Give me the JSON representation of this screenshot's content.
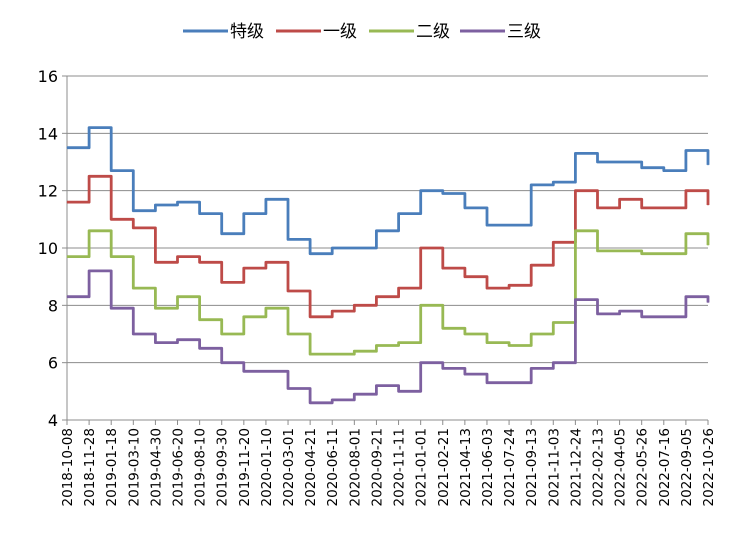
{
  "chart_data": {
    "type": "line",
    "title": "",
    "xlabel": "",
    "ylabel": "",
    "ylim": [
      4,
      16
    ],
    "yticks": [
      4,
      6,
      8,
      10,
      12,
      14,
      16
    ],
    "grid": "horizontal",
    "legend_position": "top",
    "x": [
      "2018-10-08",
      "2018-11-28",
      "2019-01-18",
      "2019-03-10",
      "2019-04-30",
      "2019-06-20",
      "2019-08-10",
      "2019-09-30",
      "2019-11-20",
      "2020-01-10",
      "2020-03-01",
      "2020-04-21",
      "2020-06-11",
      "2020-08-01",
      "2020-09-21",
      "2020-11-11",
      "2021-01-01",
      "2021-02-21",
      "2021-04-13",
      "2021-06-03",
      "2021-07-24",
      "2021-09-13",
      "2021-11-03",
      "2021-12-24",
      "2022-02-13",
      "2022-04-05",
      "2022-05-26",
      "2022-07-16",
      "2022-09-05",
      "2022-10-26"
    ],
    "series": [
      {
        "name": "特级",
        "color": "#4a7ebb",
        "values": [
          13.5,
          14.2,
          12.7,
          11.3,
          11.5,
          11.6,
          11.2,
          10.5,
          11.2,
          11.7,
          10.3,
          9.8,
          10.0,
          10.0,
          10.6,
          11.2,
          12.0,
          11.9,
          11.4,
          10.8,
          10.8,
          12.2,
          12.3,
          13.3,
          13.0,
          13.0,
          12.8,
          12.7,
          13.4,
          12.9
        ]
      },
      {
        "name": "一级",
        "color": "#be4b48",
        "values": [
          11.6,
          12.5,
          11.0,
          10.7,
          9.5,
          9.7,
          9.5,
          8.8,
          9.3,
          9.5,
          8.5,
          7.6,
          7.8,
          8.0,
          8.3,
          8.6,
          10.0,
          9.3,
          9.0,
          8.6,
          8.7,
          9.4,
          10.2,
          12.0,
          11.4,
          11.7,
          11.4,
          11.4,
          12.0,
          11.5
        ]
      },
      {
        "name": "二级",
        "color": "#98b954",
        "values": [
          9.7,
          10.6,
          9.7,
          8.6,
          7.9,
          8.3,
          7.5,
          7.0,
          7.6,
          7.9,
          7.0,
          6.3,
          6.3,
          6.4,
          6.6,
          6.7,
          8.0,
          7.2,
          7.0,
          6.7,
          6.6,
          7.0,
          7.4,
          10.6,
          9.9,
          9.9,
          9.8,
          9.8,
          10.5,
          10.1
        ]
      },
      {
        "name": "三级",
        "color": "#7d60a0",
        "values": [
          8.3,
          9.2,
          7.9,
          7.0,
          6.7,
          6.8,
          6.5,
          6.0,
          5.7,
          5.7,
          5.1,
          4.6,
          4.7,
          4.9,
          5.2,
          5.0,
          6.0,
          5.8,
          5.6,
          5.3,
          5.3,
          5.8,
          6.0,
          8.2,
          7.7,
          7.8,
          7.6,
          7.6,
          8.3,
          8.1
        ]
      }
    ]
  }
}
